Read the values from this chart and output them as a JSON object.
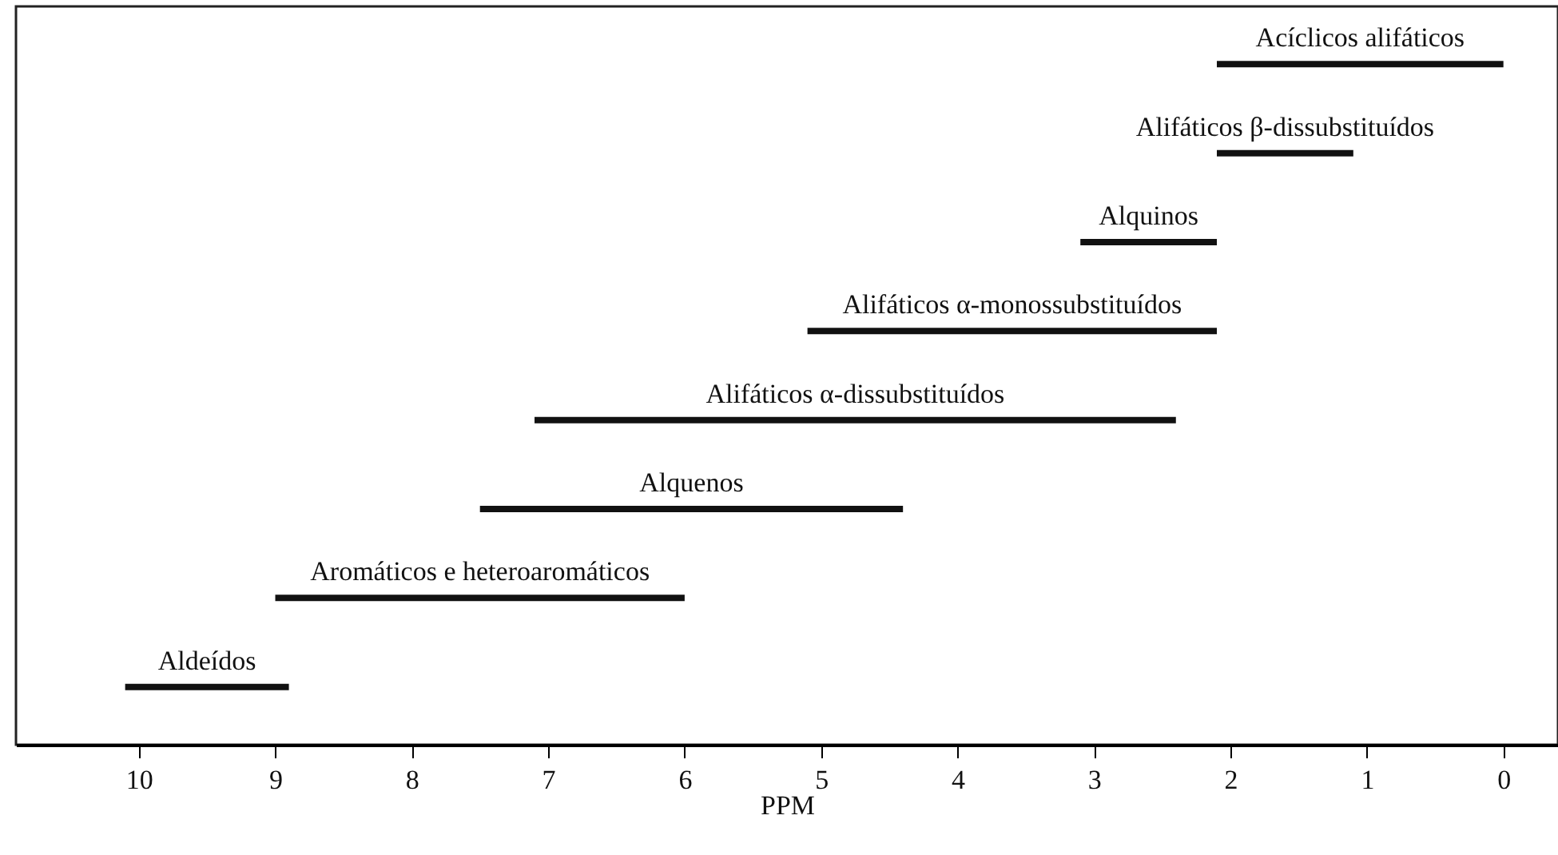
{
  "chart_data": {
    "type": "bar",
    "orientation": "horizontal",
    "xlabel": "PPM",
    "categories": [
      "Acíclicos alifáticos",
      "Alifáticos β-dissubstituídos",
      "Alquinos",
      "Alifáticos α-monossubstituídos",
      "Alifáticos α-dissubstituídos",
      "Alquenos",
      "Aromáticos e heteroaromáticos",
      "Aldeídos"
    ],
    "base": [
      0,
      1.1,
      2.1,
      2.1,
      2.4,
      4.4,
      6.0,
      8.9
    ],
    "values": [
      2.1,
      1.0,
      1.0,
      3.0,
      4.7,
      3.1,
      3.0,
      1.2
    ],
    "color": "#111111",
    "xlim": [
      10.9,
      -0.4
    ],
    "xticks": [
      10,
      9,
      8,
      7,
      6,
      5,
      4,
      3,
      2,
      1,
      0
    ],
    "tick_labels": "x"
  }
}
